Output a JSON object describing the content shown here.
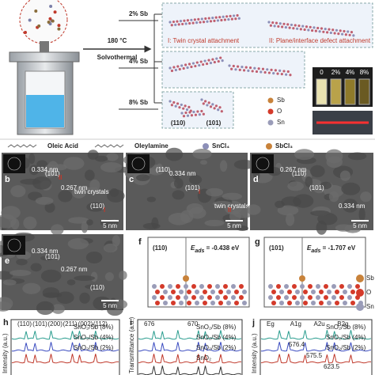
{
  "panel_a": {
    "temperature": "180 °C",
    "method": "Solvothermal",
    "doping": [
      "2% Sb",
      "4% Sb",
      "8% Sb"
    ],
    "mechanisms": [
      "I: Twin crystal attachment",
      "II: Plane/interface defect attachment"
    ],
    "facets": [
      "(110)",
      "(101)"
    ],
    "atom_legend": [
      "Sb",
      "O",
      "Sn"
    ],
    "vials": [
      "0",
      "2%",
      "4%",
      "8%"
    ],
    "ligands": [
      "Oleic Acid",
      "Oleylamine",
      "SnCl₄",
      "SbCl₃"
    ]
  },
  "tem": [
    {
      "label": "b",
      "annotations": [
        "0.334 nm",
        "0.267 nm",
        "(110)",
        "(101)",
        "twin crystals",
        "I",
        "II"
      ],
      "scale": "5 nm"
    },
    {
      "label": "c",
      "annotations": [
        "(110)",
        "(101)",
        "twin crystals",
        "0.334 nm",
        "I",
        "II"
      ],
      "scale": "5 nm"
    },
    {
      "label": "d",
      "annotations": [
        "0.267 nm",
        "(101)",
        "0.334 nm",
        "(110)"
      ],
      "scale": "5 nm"
    },
    {
      "label": "e",
      "annotations": [
        "0.334 nm",
        "0.267 nm",
        "(110)",
        "(101)"
      ],
      "scale": "5 nm"
    }
  ],
  "dft": [
    {
      "label": "f",
      "facet": "(110)",
      "symbol": "E",
      "subscript": "ads",
      "value": " = -0.438 eV"
    },
    {
      "label": "g",
      "facet": "(101)",
      "symbol": "E",
      "subscript": "ads",
      "value": " = -1.707 eV"
    }
  ],
  "dft_legend": [
    "Sb",
    "O",
    "Sn"
  ],
  "spectra": [
    {
      "label": "h",
      "y_label": "Intensity (a.u.)",
      "peaks": [
        "(110)",
        "(101)",
        "(200)",
        "(211)",
        "(002)",
        "(112)"
      ],
      "series": [
        "SnO₂/Sb (8%)",
        "SnO₂/Sb (4%)",
        "SnO₂/Sb (2%)"
      ]
    },
    {
      "label": "i",
      "y_label": "Transmittance (a.u.)",
      "peaks": [
        "676",
        "670"
      ],
      "series": [
        "SnO₂/Sb (8%)",
        "SnO₂/Sb (4%)",
        "SnO₂/Sb (2%)",
        "SnO₂"
      ]
    },
    {
      "label": "j",
      "y_label": "Intensity (a.u.)",
      "peaks": [
        "Eg",
        "A1g",
        "A2u",
        "B2g"
      ],
      "numbers": [
        "576.4",
        "575.5",
        "623.5"
      ],
      "series": [
        "SnO₂/Sb (8%)",
        "SnO₂/Sb (4%)",
        "SnO₂/Sb (2%)"
      ]
    }
  ]
}
